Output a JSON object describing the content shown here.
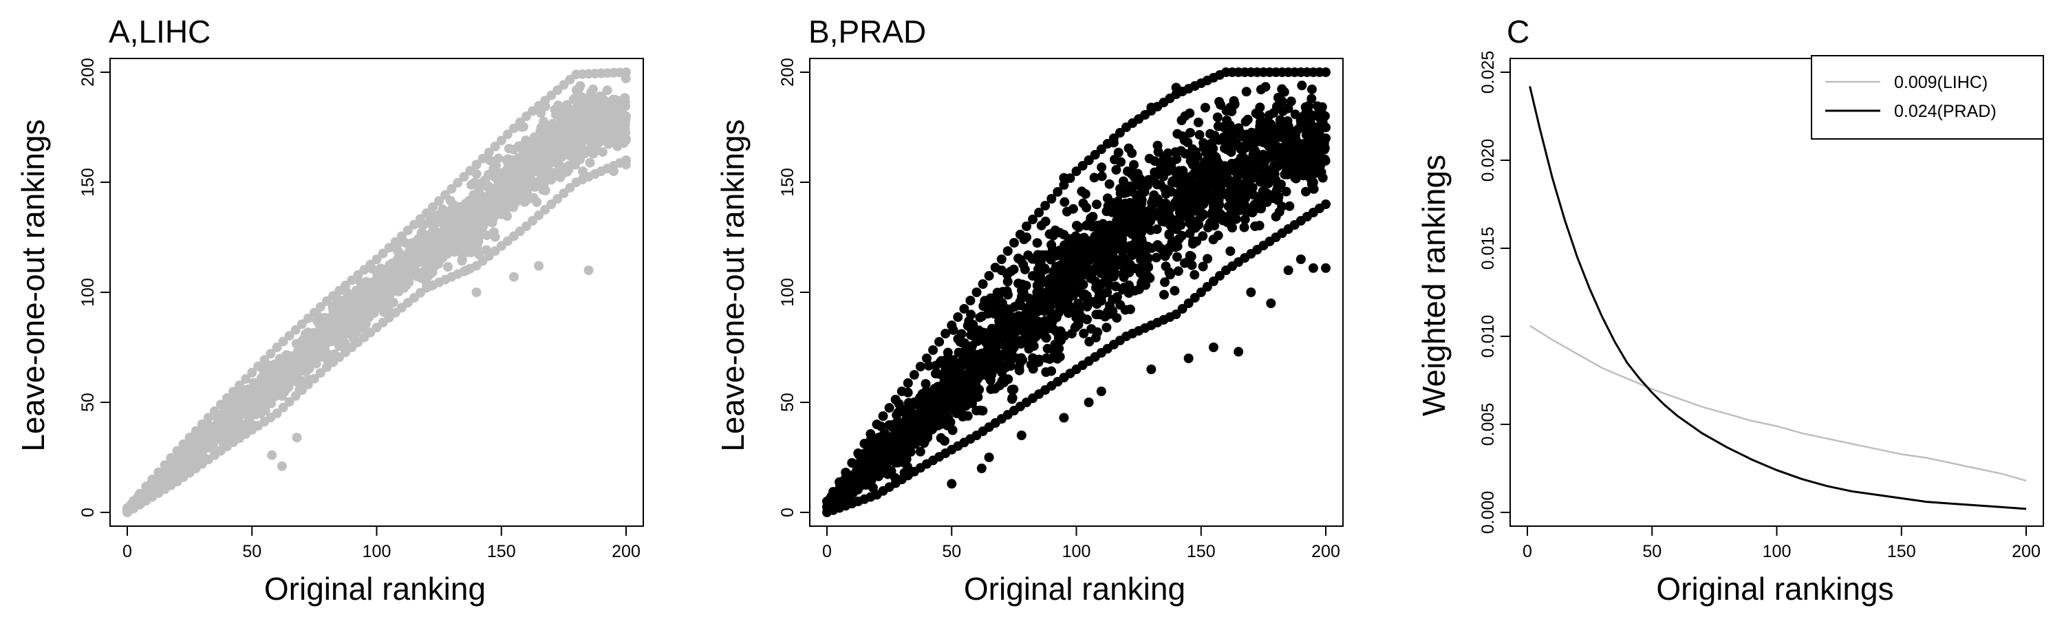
{
  "chart_data": [
    {
      "type": "scatter",
      "title": "A,LIHC",
      "xlabel": "Original ranking",
      "ylabel": "Leave-one-out rankings",
      "xlim": [
        0,
        200
      ],
      "ylim": [
        0,
        200
      ],
      "x_ticks": [
        0,
        50,
        100,
        150,
        200
      ],
      "y_ticks": [
        0,
        50,
        100,
        150,
        200
      ],
      "color": "#bebebe",
      "spread_profile": [
        {
          "x": 0,
          "y_low": 0,
          "y_high": 2
        },
        {
          "x": 20,
          "y_low": 14,
          "y_high": 28
        },
        {
          "x": 40,
          "y_low": 30,
          "y_high": 52
        },
        {
          "x": 60,
          "y_low": 45,
          "y_high": 75
        },
        {
          "x": 80,
          "y_low": 66,
          "y_high": 96
        },
        {
          "x": 100,
          "y_low": 84,
          "y_high": 115
        },
        {
          "x": 120,
          "y_low": 102,
          "y_high": 136
        },
        {
          "x": 140,
          "y_low": 112,
          "y_high": 158
        },
        {
          "x": 160,
          "y_low": 130,
          "y_high": 180
        },
        {
          "x": 180,
          "y_low": 150,
          "y_high": 199
        },
        {
          "x": 200,
          "y_low": 160,
          "y_high": 200
        }
      ],
      "outliers": [
        {
          "x": 58,
          "y": 26
        },
        {
          "x": 62,
          "y": 21
        },
        {
          "x": 68,
          "y": 34
        },
        {
          "x": 120,
          "y": 104
        },
        {
          "x": 122,
          "y": 103
        },
        {
          "x": 136,
          "y": 110
        },
        {
          "x": 140,
          "y": 100
        },
        {
          "x": 155,
          "y": 107
        },
        {
          "x": 165,
          "y": 112
        },
        {
          "x": 185,
          "y": 110
        },
        {
          "x": 195,
          "y": 155
        },
        {
          "x": 200,
          "y": 158
        }
      ]
    },
    {
      "type": "scatter",
      "title": "B,PRAD",
      "xlabel": "Original ranking",
      "ylabel": "Leave-one-out rankings",
      "xlim": [
        0,
        200
      ],
      "ylim": [
        0,
        200
      ],
      "x_ticks": [
        0,
        50,
        100,
        150,
        200
      ],
      "y_ticks": [
        0,
        50,
        100,
        150,
        200
      ],
      "color": "#000000",
      "spread_profile": [
        {
          "x": 0,
          "y_low": 0,
          "y_high": 5
        },
        {
          "x": 20,
          "y_low": 8,
          "y_high": 40
        },
        {
          "x": 40,
          "y_low": 22,
          "y_high": 70
        },
        {
          "x": 60,
          "y_low": 35,
          "y_high": 100
        },
        {
          "x": 80,
          "y_low": 50,
          "y_high": 130
        },
        {
          "x": 100,
          "y_low": 65,
          "y_high": 155
        },
        {
          "x": 120,
          "y_low": 80,
          "y_high": 175
        },
        {
          "x": 140,
          "y_low": 90,
          "y_high": 190
        },
        {
          "x": 160,
          "y_low": 110,
          "y_high": 200
        },
        {
          "x": 180,
          "y_low": 125,
          "y_high": 200
        },
        {
          "x": 200,
          "y_low": 140,
          "y_high": 200
        }
      ],
      "outliers": [
        {
          "x": 50,
          "y": 13
        },
        {
          "x": 62,
          "y": 20
        },
        {
          "x": 65,
          "y": 25
        },
        {
          "x": 78,
          "y": 35
        },
        {
          "x": 95,
          "y": 43
        },
        {
          "x": 105,
          "y": 50
        },
        {
          "x": 110,
          "y": 55
        },
        {
          "x": 130,
          "y": 65
        },
        {
          "x": 145,
          "y": 70
        },
        {
          "x": 155,
          "y": 75
        },
        {
          "x": 165,
          "y": 73
        },
        {
          "x": 170,
          "y": 100
        },
        {
          "x": 178,
          "y": 95
        },
        {
          "x": 185,
          "y": 110
        },
        {
          "x": 190,
          "y": 115
        },
        {
          "x": 195,
          "y": 111
        },
        {
          "x": 200,
          "y": 111
        },
        {
          "x": 70,
          "y": 110
        },
        {
          "x": 80,
          "y": 125
        },
        {
          "x": 95,
          "y": 152
        },
        {
          "x": 105,
          "y": 160
        },
        {
          "x": 115,
          "y": 168
        },
        {
          "x": 130,
          "y": 184
        },
        {
          "x": 140,
          "y": 193
        }
      ]
    },
    {
      "type": "line",
      "title": "C",
      "xlabel": "Original rankings",
      "ylabel": "Weighted rankings",
      "xlim": [
        0,
        200
      ],
      "ylim": [
        0.0,
        0.025
      ],
      "x_ticks": [
        0,
        50,
        100,
        150,
        200
      ],
      "y_ticks": [
        "0.000",
        "0.005",
        "0.010",
        "0.015",
        "0.020",
        "0.025"
      ],
      "legend": "top-right",
      "series": [
        {
          "name": "0.009(LIHC)",
          "color": "#bebebe",
          "x": [
            1,
            10,
            20,
            30,
            40,
            50,
            60,
            70,
            80,
            90,
            100,
            110,
            120,
            130,
            140,
            150,
            160,
            170,
            180,
            190,
            200
          ],
          "y": [
            0.0106,
            0.0098,
            0.009,
            0.0082,
            0.0076,
            0.007,
            0.0065,
            0.006,
            0.0056,
            0.0052,
            0.0049,
            0.0045,
            0.0042,
            0.0039,
            0.0036,
            0.0033,
            0.0031,
            0.0028,
            0.0025,
            0.0022,
            0.0018
          ]
        },
        {
          "name": "0.024(PRAD)",
          "color": "#000000",
          "x": [
            1,
            5,
            10,
            15,
            20,
            25,
            30,
            35,
            40,
            45,
            50,
            55,
            60,
            70,
            80,
            90,
            100,
            110,
            120,
            130,
            140,
            150,
            160,
            170,
            180,
            190,
            200
          ],
          "y": [
            0.0242,
            0.0218,
            0.019,
            0.0166,
            0.0145,
            0.0127,
            0.0111,
            0.0097,
            0.0085,
            0.0076,
            0.0068,
            0.0061,
            0.0055,
            0.0045,
            0.0037,
            0.003,
            0.0024,
            0.0019,
            0.0015,
            0.0012,
            0.001,
            0.0008,
            0.0006,
            0.0005,
            0.0004,
            0.0003,
            0.0002
          ]
        }
      ]
    }
  ]
}
